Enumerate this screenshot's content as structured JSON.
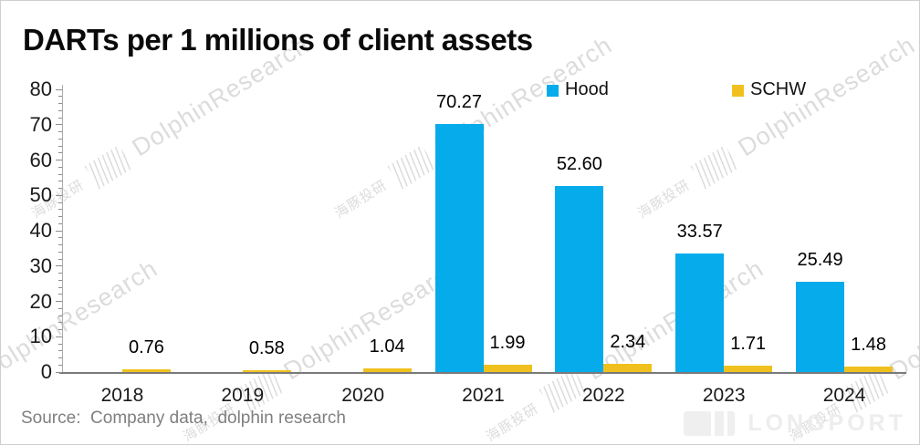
{
  "title": "DARTs per 1 millions of client assets",
  "source": {
    "text": "Source:  Company data,  dolphin research"
  },
  "watermark": {
    "cn": "海豚投研",
    "en": "DolphinResearch"
  },
  "logo": {
    "text": "LONGPORT"
  },
  "legend": [
    {
      "label": "Hood",
      "color": "#05ABEA"
    },
    {
      "label": "SCHW",
      "color": "#F0C11E"
    }
  ],
  "chart_data": {
    "type": "bar",
    "title": "DARTs per 1 millions of client assets",
    "categories": [
      "2018",
      "2019",
      "2020",
      "2021",
      "2022",
      "2023",
      "2024"
    ],
    "series": [
      {
        "name": "Hood",
        "color": "#05ABEA",
        "values": [
          null,
          null,
          null,
          70.27,
          52.6,
          33.57,
          25.49
        ],
        "labels": [
          null,
          null,
          null,
          "70.27",
          "52.60",
          "33.57",
          "25.49"
        ]
      },
      {
        "name": "SCHW",
        "color": "#F0C11E",
        "values": [
          0.76,
          0.58,
          1.04,
          1.99,
          2.34,
          1.71,
          1.48
        ],
        "labels": [
          "0.76",
          "0.58",
          "1.04",
          "1.99",
          "2.34",
          "1.71",
          "1.48"
        ]
      }
    ],
    "xlabel": "",
    "ylabel": "",
    "ylim": [
      0,
      80
    ],
    "ytick_step": 10,
    "ytick_minor_step": 2,
    "grid": false,
    "legend_position": "top-center"
  }
}
